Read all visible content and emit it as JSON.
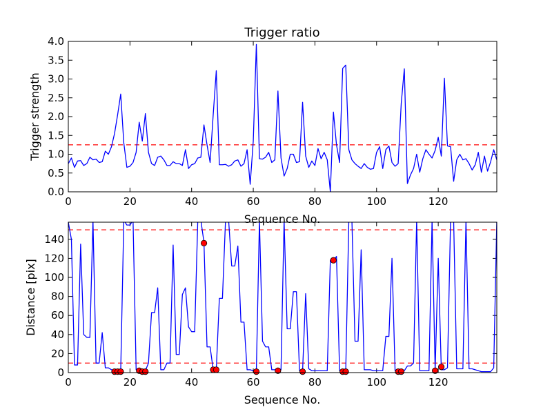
{
  "chart_data": [
    {
      "type": "line",
      "title": "Trigger ratio",
      "xlabel": "Sequence No.",
      "ylabel": "Trigger strength",
      "xlim": [
        0,
        139
      ],
      "ylim": [
        0,
        4.0
      ],
      "xticks": [
        0,
        20,
        40,
        60,
        80,
        100,
        120
      ],
      "yticks": [
        0.0,
        0.5,
        1.0,
        1.5,
        2.0,
        2.5,
        3.0,
        3.5,
        4.0
      ],
      "ytick_labels": [
        "0.0",
        "0.5",
        "1.0",
        "1.5",
        "2.0",
        "2.5",
        "3.0",
        "3.5",
        "4.0"
      ],
      "line_color": "#0000ff",
      "threshold_lines": [
        {
          "y": 1.25,
          "color": "#ff0000"
        }
      ],
      "series": [
        {
          "x": [
            0,
            1,
            2,
            3,
            4,
            5,
            6,
            7,
            8,
            9,
            10,
            11,
            12,
            13,
            14,
            15,
            16,
            17,
            18,
            19,
            20,
            21,
            22,
            23,
            24,
            25,
            26,
            27,
            28,
            29,
            30,
            31,
            32,
            33,
            34,
            35,
            36,
            37,
            38,
            39,
            40,
            41,
            42,
            43,
            44,
            45,
            46,
            47,
            48,
            49,
            50,
            51,
            52,
            53,
            54,
            55,
            56,
            57,
            58,
            59,
            60,
            61,
            62,
            63,
            64,
            65,
            66,
            67,
            68,
            69,
            70,
            71,
            72,
            73,
            74,
            75,
            76,
            77,
            78,
            79,
            80,
            81,
            82,
            83,
            84,
            85,
            86,
            87,
            88,
            89,
            90,
            91,
            92,
            93,
            94,
            95,
            96,
            97,
            98,
            99,
            100,
            101,
            102,
            103,
            104,
            105,
            106,
            107,
            108,
            109,
            110,
            111,
            112,
            113,
            114,
            115,
            116,
            117,
            118,
            119,
            120,
            121,
            122,
            123,
            124,
            125,
            126,
            127,
            128,
            129,
            130,
            131,
            132,
            133,
            134,
            135,
            136,
            137,
            138,
            139
          ],
          "values": [
            0.75,
            0.9,
            0.65,
            0.82,
            0.83,
            0.7,
            0.75,
            0.92,
            0.85,
            0.87,
            0.78,
            0.8,
            1.08,
            1.0,
            1.2,
            1.55,
            2.05,
            2.6,
            1.3,
            0.65,
            0.68,
            0.78,
            1.05,
            1.85,
            1.35,
            2.08,
            1.05,
            0.75,
            0.7,
            0.92,
            0.95,
            0.85,
            0.7,
            0.7,
            0.8,
            0.75,
            0.75,
            0.7,
            1.12,
            0.62,
            0.72,
            0.75,
            0.9,
            0.92,
            1.78,
            1.25,
            0.78,
            2.05,
            3.22,
            0.72,
            0.72,
            0.73,
            0.68,
            0.72,
            0.82,
            0.85,
            0.68,
            0.75,
            1.12,
            0.2,
            1.35,
            3.92,
            0.88,
            0.87,
            0.92,
            1.05,
            0.78,
            0.85,
            2.68,
            0.9,
            0.42,
            0.62,
            1.0,
            1.0,
            0.78,
            0.8,
            2.38,
            0.95,
            0.65,
            0.82,
            0.7,
            1.15,
            0.88,
            1.05,
            0.85,
            0.0,
            2.12,
            1.25,
            0.78,
            3.28,
            3.37,
            1.12,
            0.85,
            0.75,
            0.68,
            0.62,
            0.75,
            0.65,
            0.6,
            0.62,
            1.05,
            1.2,
            0.62,
            1.12,
            1.22,
            0.78,
            0.68,
            0.75,
            2.35,
            3.27,
            0.22,
            0.45,
            0.62,
            1.0,
            0.52,
            0.88,
            1.12,
            1.0,
            0.9,
            1.1,
            1.45,
            0.95,
            3.02,
            1.22,
            1.2,
            0.28,
            0.85,
            1.0,
            0.85,
            0.88,
            0.75,
            0.58,
            0.72,
            1.05,
            0.52,
            0.95,
            0.55,
            0.8,
            1.12,
            0.85
          ]
        }
      ]
    },
    {
      "type": "line",
      "title": "",
      "xlabel": "Sequence No.",
      "ylabel": "Distance [pix]",
      "xlim": [
        0,
        139
      ],
      "ylim": [
        0,
        158
      ],
      "xticks": [
        0,
        20,
        40,
        60,
        80,
        100,
        120
      ],
      "yticks": [
        0,
        20,
        40,
        60,
        80,
        100,
        120,
        140
      ],
      "ytick_labels": [
        "0",
        "20",
        "40",
        "60",
        "80",
        "100",
        "120",
        "140"
      ],
      "line_color": "#0000ff",
      "marker_color": "#ff0000",
      "threshold_lines": [
        {
          "y": 10,
          "color": "#ff0000"
        },
        {
          "y": 150,
          "color": "#ff0000"
        }
      ],
      "series": [
        {
          "x": [
            0,
            1,
            2,
            3,
            4,
            5,
            6,
            7,
            8,
            9,
            10,
            11,
            12,
            13,
            14,
            15,
            16,
            17,
            18,
            19,
            20,
            21,
            22,
            23,
            24,
            25,
            26,
            27,
            28,
            29,
            30,
            31,
            32,
            33,
            34,
            35,
            36,
            37,
            38,
            39,
            40,
            41,
            42,
            43,
            44,
            45,
            46,
            47,
            48,
            49,
            50,
            51,
            52,
            53,
            54,
            55,
            56,
            57,
            58,
            59,
            60,
            61,
            62,
            63,
            64,
            65,
            66,
            67,
            68,
            69,
            70,
            71,
            72,
            73,
            74,
            75,
            76,
            77,
            78,
            79,
            80,
            81,
            82,
            83,
            84,
            85,
            86,
            87,
            88,
            89,
            90,
            91,
            92,
            93,
            94,
            95,
            96,
            97,
            98,
            99,
            100,
            101,
            102,
            103,
            104,
            105,
            106,
            107,
            108,
            109,
            110,
            111,
            112,
            113,
            114,
            115,
            116,
            117,
            118,
            119,
            120,
            121,
            122,
            123,
            124,
            125,
            126,
            127,
            128,
            129,
            130,
            131,
            132,
            133,
            134,
            135,
            136,
            137,
            138,
            139
          ],
          "values": [
            158,
            140,
            8,
            8,
            135,
            40,
            37,
            37,
            160,
            10,
            10,
            42,
            5,
            5,
            3,
            2,
            2,
            2,
            160,
            155,
            155,
            160,
            3,
            3,
            2,
            2,
            10,
            63,
            63,
            89,
            3,
            3,
            10,
            10,
            134,
            19,
            19,
            82,
            89,
            48,
            43,
            43,
            160,
            160,
            137,
            27,
            27,
            3,
            3,
            78,
            78,
            160,
            160,
            112,
            112,
            133,
            53,
            53,
            3,
            3,
            2,
            2,
            160,
            33,
            27,
            27,
            3,
            3,
            3,
            3,
            160,
            46,
            46,
            85,
            85,
            2,
            2,
            83,
            4,
            2,
            2,
            2,
            2,
            2,
            2,
            118,
            118,
            122,
            2,
            2,
            2,
            160,
            160,
            33,
            33,
            129,
            3,
            3,
            3,
            2,
            2,
            2,
            2,
            38,
            38,
            120,
            2,
            2,
            2,
            2,
            7,
            7,
            10,
            160,
            2,
            2,
            2,
            2,
            160,
            2,
            120,
            3,
            3,
            5,
            160,
            160,
            4,
            4,
            4,
            160,
            4,
            4,
            3,
            2,
            1,
            1,
            1,
            1,
            5,
            160
          ]
        },
        {
          "name": "",
          "markers": true,
          "x": [
            15,
            16,
            17,
            23,
            24,
            25,
            44,
            47,
            48,
            61,
            68,
            76,
            86,
            89,
            90,
            107,
            108,
            119,
            121
          ],
          "values": [
            1,
            1,
            1,
            2,
            1,
            1,
            136,
            3,
            3,
            1,
            2,
            1,
            118,
            1,
            1,
            1,
            1,
            2,
            6
          ]
        }
      ]
    }
  ]
}
